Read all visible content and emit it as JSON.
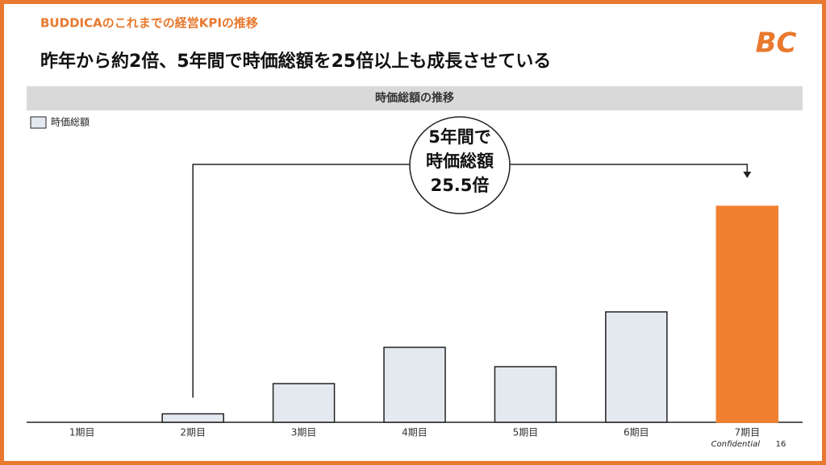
{
  "header": {
    "section": "BUDDICAのこれまでの経営KPIの推移",
    "headline": "昨年から約2倍、5年間で時価総額を25倍以上も成長させている",
    "logo": "BC"
  },
  "chart_data": {
    "type": "bar",
    "title": "時価総額の推移",
    "categories": [
      "1期目",
      "2期目",
      "3期目",
      "4期目",
      "5期目",
      "6期目",
      "7期目"
    ],
    "series": [
      {
        "name": "時価総額",
        "color": "#e4e8ef",
        "values": [
          null,
          10.5,
          48,
          93,
          69,
          137,
          268
        ]
      }
    ],
    "highlight_color": "#f08030",
    "annotation": [
      "5年間で",
      "時価総額",
      "25.5倍"
    ]
  },
  "footer": {
    "confidential": "Confidential",
    "page": "16"
  }
}
